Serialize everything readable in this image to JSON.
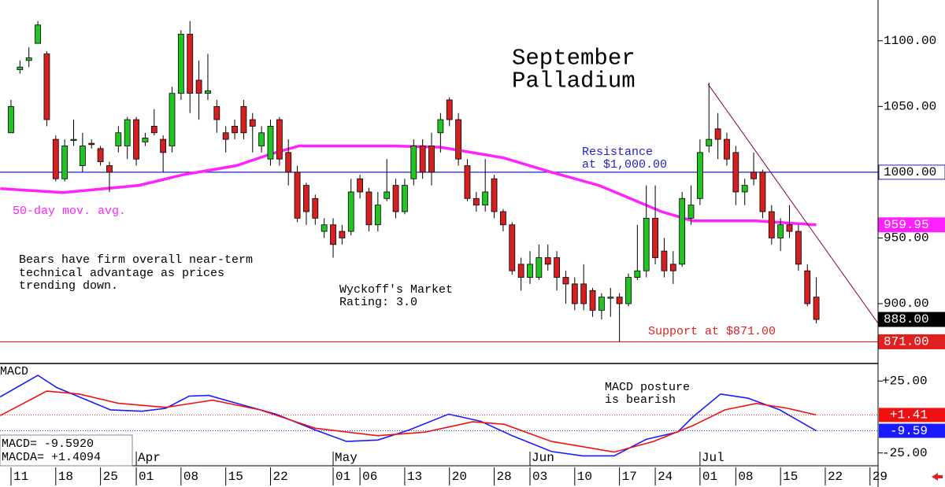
{
  "chart_data": {
    "type": "candlestick",
    "title": [
      "September",
      "Palladium"
    ],
    "xlim": [
      -1.23,
      96.9
    ],
    "ylim": [
      854.5,
      1131
    ],
    "y2lim": [
      -33.9,
      37.2
    ],
    "xticks": [
      {
        "value": 0,
        "label": "11"
      },
      {
        "value": 5,
        "label": "18"
      },
      {
        "value": 10,
        "label": "25"
      },
      {
        "value": 14,
        "label": "01"
      },
      {
        "value": 19,
        "label": "08"
      },
      {
        "value": 24,
        "label": "15"
      },
      {
        "value": 29,
        "label": "22"
      },
      {
        "value": 36,
        "label": "01"
      },
      {
        "value": 39,
        "label": "06"
      },
      {
        "value": 44,
        "label": "13"
      },
      {
        "value": 49,
        "label": "20"
      },
      {
        "value": 54,
        "label": "28"
      },
      {
        "value": 58,
        "label": "03"
      },
      {
        "value": 63,
        "label": "10"
      },
      {
        "value": 68,
        "label": "17"
      },
      {
        "value": 72,
        "label": "24"
      },
      {
        "value": 77,
        "label": "01"
      },
      {
        "value": 81,
        "label": "08"
      },
      {
        "value": 86,
        "label": "15"
      },
      {
        "value": 91,
        "label": "22"
      },
      {
        "value": 96,
        "label": "29"
      }
    ],
    "months": [
      {
        "value": 14,
        "label": "Apr"
      },
      {
        "value": 36,
        "label": "May"
      },
      {
        "value": 58,
        "label": "Jun"
      },
      {
        "value": 77,
        "label": "Jul"
      }
    ],
    "yticks": [
      {
        "value": 1100,
        "label": "1100.00"
      },
      {
        "value": 1050,
        "label": "1050.00"
      },
      {
        "value": 950,
        "label": "950.00"
      },
      {
        "value": 900,
        "label": "900.00"
      }
    ],
    "y2ticks": [
      {
        "value": 25,
        "label": "+25.00"
      },
      {
        "value": -25,
        "label": "-25.00"
      }
    ],
    "up_color": "#22c422",
    "down_color": "#d42020",
    "candles": {
      "x": [
        0,
        1,
        2,
        3,
        4,
        5,
        6,
        7,
        8,
        9,
        10,
        11,
        12,
        13,
        14,
        15,
        16,
        17,
        18,
        19,
        20,
        21,
        22,
        23,
        24,
        25,
        26,
        27,
        28,
        29,
        30,
        31,
        32,
        33,
        34,
        35,
        36,
        37,
        38,
        39,
        40,
        41,
        42,
        43,
        44,
        45,
        46,
        47,
        48,
        49,
        50,
        51,
        52,
        53,
        54,
        55,
        56,
        57,
        58,
        59,
        60,
        61,
        62,
        63,
        64,
        65,
        66,
        67,
        68,
        69,
        70,
        71,
        72,
        73,
        74,
        75,
        76,
        77,
        78,
        79,
        80,
        81,
        82,
        83,
        84,
        85,
        86,
        87,
        88,
        89,
        90
      ],
      "open": [
        1030,
        1078,
        1085,
        1098,
        1090,
        1025,
        995,
        1025,
        1005,
        1022,
        1018,
        1005,
        1020,
        1020,
        1040,
        1023,
        1035,
        1025,
        1020,
        1060,
        1105,
        1070,
        1060,
        1050,
        1030,
        1035,
        1050,
        1040,
        1020,
        1010,
        1040,
        1015,
        1000,
        990,
        980,
        955,
        960,
        955,
        955,
        995,
        985,
        960,
        980,
        990,
        970,
        995,
        1020,
        1020,
        1030,
        1055,
        1040,
        1005,
        980,
        975,
        995,
        970,
        960,
        930,
        920,
        920,
        935,
        935,
        920,
        915,
        915,
        910,
        895,
        905,
        905,
        900,
        920,
        925,
        965,
        940,
        930,
        930,
        965,
        980,
        1020,
        1033,
        1025,
        1015,
        985,
        1000,
        1000,
        970,
        950,
        960,
        955,
        925,
        905
      ],
      "high": [
        1055,
        1085,
        1095,
        1115,
        1092,
        1028,
        1025,
        1040,
        1030,
        1025,
        1020,
        1008,
        1035,
        1042,
        1042,
        1030,
        1048,
        1028,
        1065,
        1108,
        1115,
        1085,
        1090,
        1055,
        1035,
        1040,
        1055,
        1045,
        1035,
        1040,
        1042,
        1025,
        1005,
        992,
        983,
        965,
        965,
        960,
        995,
        998,
        988,
        985,
        1010,
        995,
        995,
        1025,
        1025,
        1030,
        1045,
        1057,
        1045,
        1010,
        985,
        1010,
        998,
        972,
        962,
        935,
        940,
        945,
        945,
        940,
        925,
        920,
        930,
        912,
        908,
        912,
        908,
        923,
        960,
        990,
        990,
        950,
        940,
        985,
        990,
        1025,
        1068,
        1045,
        1030,
        1020,
        995,
        1015,
        1002,
        975,
        965,
        975,
        960,
        930,
        920
      ],
      "low": [
        1030,
        1075,
        1080,
        1098,
        1035,
        993,
        993,
        1020,
        1000,
        1018,
        1005,
        985,
        1015,
        1010,
        1005,
        1020,
        1028,
        1000,
        1015,
        1055,
        1045,
        1040,
        1055,
        1030,
        1015,
        1025,
        1025,
        1015,
        1015,
        1005,
        1005,
        990,
        962,
        960,
        960,
        950,
        935,
        945,
        952,
        980,
        955,
        955,
        978,
        965,
        968,
        990,
        995,
        990,
        1015,
        1035,
        1005,
        978,
        970,
        970,
        965,
        955,
        922,
        910,
        915,
        918,
        925,
        910,
        900,
        895,
        895,
        890,
        888,
        890,
        871,
        898,
        918,
        920,
        930,
        920,
        915,
        928,
        960,
        975,
        1015,
        1010,
        1005,
        975,
        975,
        990,
        965,
        945,
        940,
        950,
        925,
        898,
        885
      ],
      "close": [
        1050,
        1080,
        1087,
        1112,
        1040,
        995,
        1020,
        1025,
        1020,
        1021,
        1008,
        1000,
        1030,
        1040,
        1010,
        1026,
        1030,
        1015,
        1060,
        1105,
        1060,
        1060,
        1062,
        1040,
        1025,
        1030,
        1030,
        1035,
        1030,
        1035,
        1010,
        1000,
        965,
        970,
        965,
        960,
        945,
        950,
        985,
        985,
        960,
        975,
        985,
        970,
        990,
        1020,
        1000,
        1000,
        1040,
        1040,
        1010,
        980,
        975,
        985,
        970,
        960,
        925,
        920,
        930,
        935,
        930,
        920,
        915,
        900,
        900,
        895,
        905,
        905,
        900,
        920,
        925,
        965,
        935,
        925,
        925,
        980,
        975,
        1015,
        1025,
        1025,
        1010,
        985,
        990,
        995,
        970,
        950,
        960,
        955,
        930,
        900,
        888
      ]
    },
    "moving_average": {
      "name": "50-day mov. avg.",
      "color": "#ff22ff",
      "x": [
        -1.2,
        5.8,
        14.3,
        19.2,
        25.2,
        29.1,
        32.2,
        42.8,
        48,
        55,
        60.4,
        65.7,
        69.2,
        72.7,
        76.2,
        83.3,
        90
      ],
      "values": [
        987.5,
        984.5,
        990,
        998,
        1005,
        1014,
        1020,
        1020,
        1019,
        1011,
        1000,
        990,
        980,
        970,
        963,
        963,
        959.95
      ]
    },
    "trendline": {
      "color": "#800040",
      "x": [
        77.9,
        96.9
      ],
      "values": [
        1067,
        885
      ]
    },
    "price_markers": [
      {
        "value": 1000,
        "label": "1000.00",
        "color": "#2222cc",
        "line": true,
        "text_color": "#000000",
        "bg": "#ffffff"
      },
      {
        "value": 959.95,
        "label": "959.95",
        "color": "#ff22ff",
        "line": false,
        "text_color": "#ffffff",
        "bg": "#ff22ff"
      },
      {
        "value": 888,
        "label": "888.00",
        "color": "#000000",
        "line": false,
        "text_color": "#ffffff",
        "bg": "#000000"
      },
      {
        "value": 871,
        "label": "871.00",
        "color": "#e02020",
        "line": true,
        "text_color": "#ffffff",
        "bg": "#e02020"
      }
    ],
    "macd_label": "MACD",
    "macd_series": [
      {
        "name": "MACD",
        "color": "#1a1aff",
        "x": [
          -1.2,
          3,
          5.1,
          11.1,
          14.6,
          17.3,
          19.9,
          22.1,
          26.1,
          29.6,
          34,
          37.5,
          41,
          44.5,
          48.9,
          52.5,
          56,
          60.4,
          63.9,
          67.4,
          71,
          74.5,
          76.2,
          79.3,
          82.4,
          85.9,
          90
        ],
        "values": [
          14,
          29,
          20.5,
          5,
          4,
          6,
          14.5,
          15,
          8,
          2,
          -9,
          -17,
          -16,
          -9,
          2,
          -3,
          -13,
          -24,
          -27,
          -27,
          -15.5,
          -10.5,
          0,
          16,
          13,
          5,
          -9.592
        ]
      },
      {
        "name": "MACDA",
        "color": "#ee1111",
        "x": [
          -1.2,
          4,
          7.6,
          12,
          17.3,
          22.5,
          27.8,
          34,
          41,
          46.3,
          51.6,
          55.1,
          60.4,
          67.4,
          71.8,
          76.2,
          79.8,
          83.3,
          86.8,
          90
        ],
        "values": [
          1,
          18,
          16,
          9.5,
          6.7,
          11.7,
          5,
          -7.8,
          -13,
          -10.5,
          -3.3,
          -5,
          -17,
          -24.4,
          -17,
          -6,
          5,
          9.4,
          6,
          1.4094
        ]
      }
    ],
    "macd_markers": [
      {
        "value": 1.41,
        "label": "+1.41",
        "color": "#ee1111"
      },
      {
        "value": -9.59,
        "label": "-9.59",
        "color": "#1a1aff"
      }
    ],
    "readouts": [
      "MACD=  -9.5920",
      "MACDA= +1.4094"
    ],
    "annotations": {
      "resistance": [
        "Resistance",
        "at $1,000.00"
      ],
      "bears": [
        "Bears have firm overall near-term",
        "technical advantage as prices",
        "trending down."
      ],
      "wyckoff": [
        "Wyckoff's Market",
        "Rating: 3.0"
      ],
      "support": "Support at $871.00",
      "macd_posture": [
        "MACD posture",
        "is bearish"
      ]
    }
  }
}
